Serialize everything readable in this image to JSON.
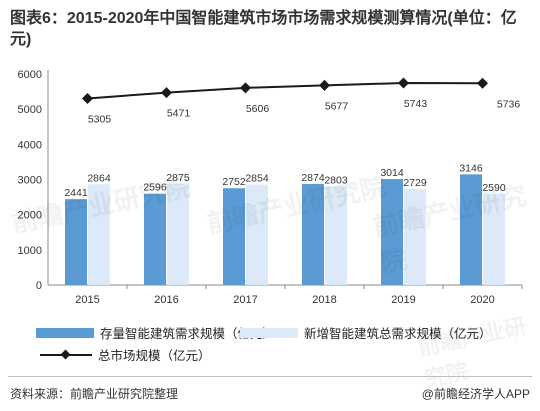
{
  "title": "图表6：2015-2020年中国智能建筑市场市场需求规模测算情况(单位：亿元)",
  "source": "资料来源：前瞻产业研究院整理",
  "brand": "@前瞻经济学人APP",
  "watermark": "前瞻产业研究院",
  "colors": {
    "stock": "#5b9bd5",
    "new": "#dbe9f8",
    "total": "#1a1a1a"
  },
  "chart_data": {
    "type": "bar",
    "categories": [
      "2015",
      "2016",
      "2017",
      "2018",
      "2019",
      "2020"
    ],
    "series": [
      {
        "name": "存量智能建筑需求规模（亿元）",
        "type": "bar",
        "values": [
          2441,
          2596,
          2752,
          2874,
          3014,
          3146
        ]
      },
      {
        "name": "新增智能建筑总需求规模（亿元）",
        "type": "bar",
        "values": [
          2864,
          2875,
          2854,
          2803,
          2729,
          2590
        ]
      },
      {
        "name": "总市场规模（亿元）",
        "type": "line",
        "values": [
          5305,
          5471,
          5606,
          5677,
          5743,
          5736
        ]
      }
    ],
    "ylim": [
      0,
      6000
    ],
    "yticks": [
      "0",
      "1000",
      "2000",
      "3000",
      "4000",
      "5000",
      "6000"
    ],
    "grid": false,
    "legend": "bottom"
  }
}
